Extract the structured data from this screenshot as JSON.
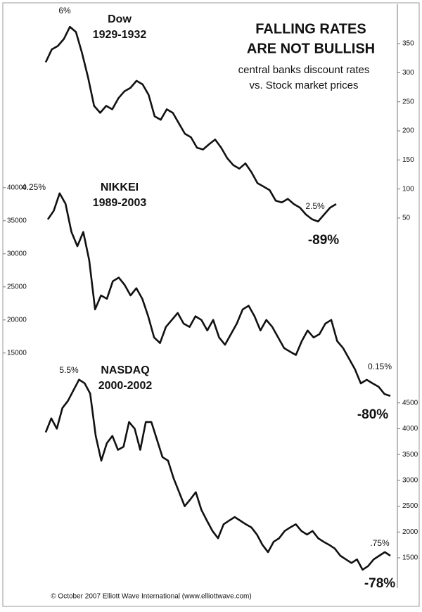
{
  "title_lines": [
    "FALLING RATES",
    "ARE NOT BULLISH"
  ],
  "subtitle_lines": [
    "central banks discount rates",
    "vs. Stock market prices"
  ],
  "footer": "© October 2007 Elliott Wave International (www.elliottwave.com)",
  "chart_data": [
    {
      "type": "line",
      "title": "Dow",
      "subtitle": "1929-1932",
      "color": "#111111",
      "annotations": [
        "6%",
        "2.5%",
        "-89%"
      ],
      "ylim": [
        30,
        390
      ],
      "yticks": [
        50,
        100,
        150,
        200,
        250,
        300,
        350
      ],
      "values": [
        318,
        340,
        346,
        358,
        379,
        370,
        334,
        292,
        243,
        231,
        243,
        237,
        256,
        268,
        274,
        286,
        280,
        262,
        225,
        219,
        237,
        231,
        213,
        195,
        189,
        171,
        168,
        177,
        185,
        171,
        153,
        141,
        135,
        144,
        129,
        110,
        104,
        98,
        80,
        77,
        83,
        74,
        68,
        56,
        48,
        44,
        56,
        68,
        74
      ]
    },
    {
      "type": "line",
      "title": "NIKKEI",
      "subtitle": "1989-2003",
      "color": "#111111",
      "annotations": [
        "4.25%",
        "0.15%",
        "-80%"
      ],
      "ylim": [
        7000,
        42000
      ],
      "yticks": [
        15000,
        20000,
        25000,
        30000,
        35000,
        40000
      ],
      "values": [
        35200,
        36500,
        39150,
        37550,
        33300,
        31150,
        33300,
        29050,
        21600,
        23700,
        23200,
        25850,
        26400,
        25300,
        23700,
        24800,
        23200,
        20550,
        17350,
        16500,
        18950,
        20000,
        21050,
        19450,
        18950,
        20550,
        20000,
        18400,
        20000,
        17350,
        16250,
        17850,
        19450,
        21600,
        22150,
        20550,
        18400,
        20000,
        18950,
        17350,
        15750,
        15200,
        14700,
        16800,
        18400,
        17350,
        17850,
        19450,
        20000,
        16800,
        15750,
        14150,
        12550,
        10400,
        10950,
        10400,
        9900,
        8800,
        8500
      ]
    },
    {
      "type": "line",
      "title": "NASDAQ",
      "subtitle": "2000-2002",
      "color": "#111111",
      "annotations": [
        "5.5%",
        ".75%",
        "-78%"
      ],
      "ylim": [
        1200,
        5000
      ],
      "yticks": [
        1500,
        2000,
        2500,
        3000,
        3500,
        4000,
        4500
      ],
      "values": [
        3930,
        4200,
        4000,
        4400,
        4540,
        4745,
        4950,
        4880,
        4680,
        3860,
        3380,
        3720,
        3860,
        3590,
        3650,
        4130,
        4000,
        3590,
        4130,
        4130,
        3790,
        3450,
        3380,
        3040,
        2770,
        2500,
        2630,
        2770,
        2430,
        2220,
        2020,
        1880,
        2150,
        2220,
        2290,
        2220,
        2150,
        2090,
        1950,
        1750,
        1610,
        1810,
        1880,
        2020,
        2090,
        2150,
        2020,
        1950,
        2020,
        1880,
        1810,
        1750,
        1680,
        1540,
        1470,
        1400,
        1470,
        1270,
        1340,
        1470,
        1540,
        1610,
        1540
      ]
    }
  ]
}
